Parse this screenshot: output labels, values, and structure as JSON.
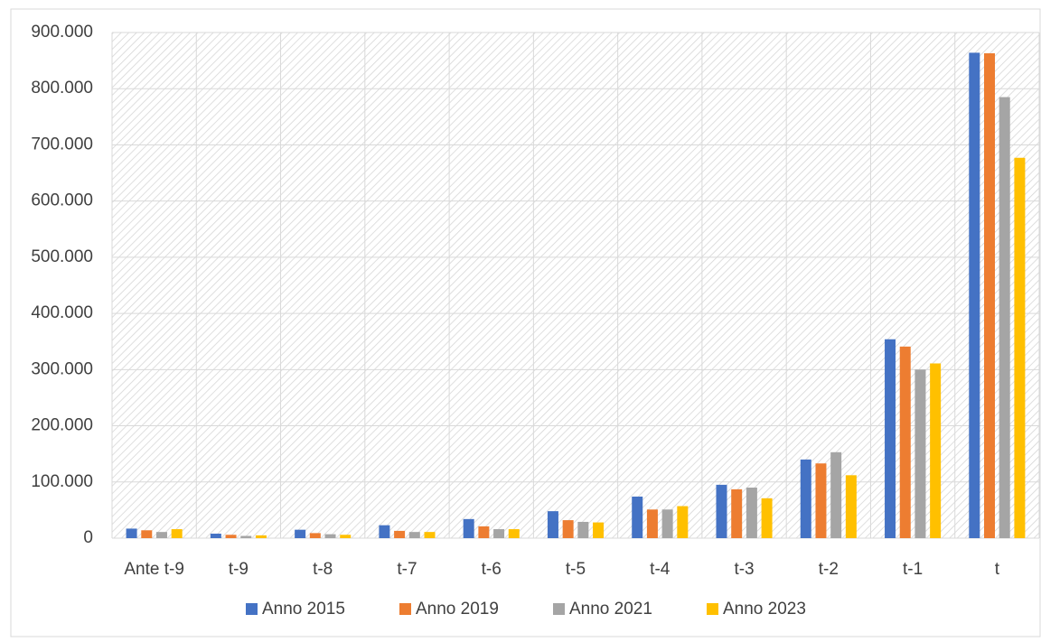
{
  "chart_data": {
    "type": "bar",
    "categories": [
      "Ante t-9",
      "t-9",
      "t-8",
      "t-7",
      "t-6",
      "t-5",
      "t-4",
      "t-3",
      "t-2",
      "t-1",
      "t"
    ],
    "series": [
      {
        "name": "Anno 2015",
        "color": "#4472c4",
        "values": [
          17000,
          8000,
          15000,
          23000,
          34000,
          48000,
          74000,
          95000,
          140000,
          354000,
          864000
        ]
      },
      {
        "name": "Anno 2019",
        "color": "#ed7d31",
        "values": [
          14000,
          6000,
          9000,
          13000,
          21000,
          32000,
          51000,
          87000,
          133000,
          341000,
          863000
        ]
      },
      {
        "name": "Anno 2021",
        "color": "#a5a5a5",
        "values": [
          11000,
          4000,
          7000,
          11000,
          16000,
          29000,
          51000,
          90000,
          153000,
          300000,
          785000
        ]
      },
      {
        "name": "Anno 2023",
        "color": "#ffc000",
        "values": [
          16000,
          5000,
          6000,
          11000,
          16000,
          28000,
          57000,
          71000,
          112000,
          311000,
          677000
        ]
      }
    ],
    "ylim": [
      0,
      900000
    ],
    "yticks": [
      0,
      {
        "value": 100000,
        "label": "100.000"
      },
      {
        "value": 200000,
        "label": "200.000"
      },
      {
        "value": 300000,
        "label": "300.000"
      },
      {
        "value": 400000,
        "label": "400.000"
      },
      {
        "value": 500000,
        "label": "500.000"
      },
      {
        "value": 600000,
        "label": "600.000"
      },
      {
        "value": 700000,
        "label": "700.000"
      },
      {
        "value": 800000,
        "label": "800.000"
      },
      {
        "value": 900000,
        "label": "900.000"
      }
    ],
    "grid": true,
    "legend": "bottom"
  }
}
